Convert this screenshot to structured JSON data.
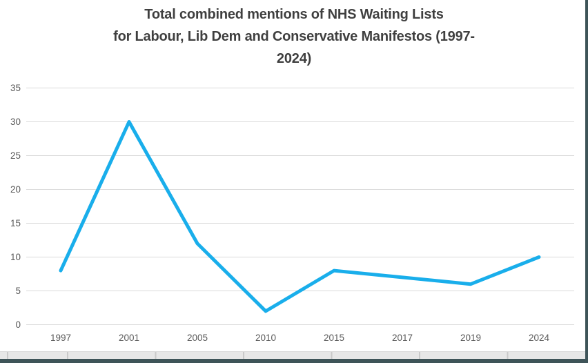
{
  "chart_data": {
    "type": "line",
    "title": "Total combined mentions of NHS Waiting Lists for Labour, Lib Dem and Conservative Manifestos (1997-2024)",
    "title_lines": [
      "Total combined mentions of NHS Waiting Lists",
      "for Labour, Lib Dem and Conservative Manifestos (1997-",
      "2024)"
    ],
    "categories": [
      "1997",
      "2001",
      "2005",
      "2010",
      "2015",
      "2017",
      "2019",
      "2024"
    ],
    "values": [
      8,
      30,
      12,
      2,
      8,
      7,
      6,
      10
    ],
    "xlabel": "",
    "ylabel": "",
    "ylim": [
      0,
      35
    ],
    "yticks": [
      0,
      5,
      10,
      15,
      20,
      25,
      30,
      35
    ],
    "grid": true,
    "legend": "none",
    "line_color": "#19AEEB",
    "gridline_color": "#D9D9D9",
    "label_color": "#595959",
    "title_color": "#3F3F3F"
  },
  "frame": {
    "border_color": "#3E5458",
    "sheet_cells_fill": "#E7E7E7",
    "sheet_cell_border": "#C9C9C9"
  }
}
